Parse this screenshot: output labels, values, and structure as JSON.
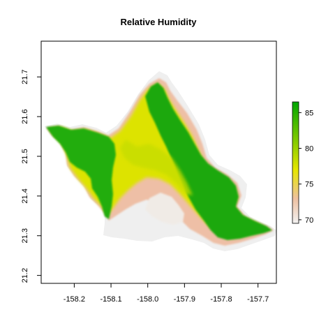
{
  "chart_data": {
    "type": "heatmap",
    "title": "Relative Humidity",
    "xlabel": "",
    "ylabel": "",
    "xlim": [
      -158.29,
      -157.65
    ],
    "ylim": [
      21.18,
      21.79
    ],
    "x_ticks": [
      -158.2,
      -158.1,
      -158.0,
      -157.9,
      -157.8,
      -157.7
    ],
    "x_tick_labels": [
      "-158.2",
      "-158.1",
      "-158.0",
      "-157.9",
      "-157.8",
      "-157.7"
    ],
    "y_ticks": [
      21.2,
      21.3,
      21.4,
      21.5,
      21.6,
      21.7
    ],
    "y_tick_labels": [
      "21.2",
      "21.3",
      "21.4",
      "21.5",
      "21.6",
      "21.7"
    ],
    "colorbar": {
      "min": 69.5,
      "max": 86.5,
      "ticks": [
        70,
        75,
        80,
        85
      ],
      "tick_labels": [
        "70",
        "75",
        "80",
        "85"
      ],
      "colors": [
        "#f2f2f2",
        "#eec1a2",
        "#e6e600",
        "#00a600"
      ],
      "color_stops": [
        69.5,
        73,
        77,
        86.5
      ]
    },
    "grid": false,
    "legend_position": "right"
  }
}
